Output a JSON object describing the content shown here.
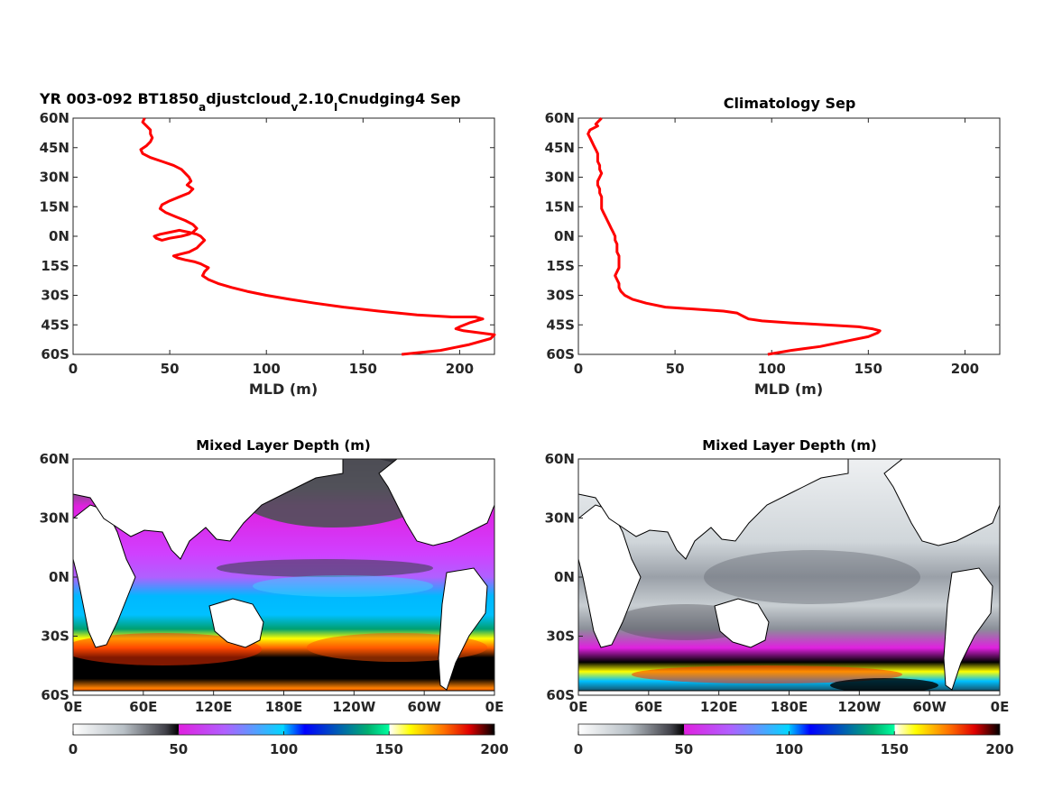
{
  "chart_data": [
    {
      "type": "line",
      "title_parts": {
        "p1": "YR 003-092 BT1850",
        "s1": "a",
        "p2": "djustcloud",
        "s2": "v",
        "p3": "2.10",
        "s3": "I",
        "p4": "Cnudging4 Sep"
      },
      "xlabel": "MLD (m)",
      "xlim": [
        0,
        218
      ],
      "ylim": [
        -60,
        60
      ],
      "xticks": [
        "0",
        "50",
        "100",
        "150",
        "200"
      ],
      "xtick_values": [
        0,
        50,
        100,
        150,
        200
      ],
      "yticks": [
        "60N",
        "45N",
        "30N",
        "15N",
        "0N",
        "15S",
        "30S",
        "45S",
        "60S"
      ],
      "ytick_values": [
        60,
        45,
        30,
        15,
        0,
        -15,
        -30,
        -45,
        -60
      ],
      "line_color": "#ff0000",
      "series": [
        {
          "x": [
            37,
            36,
            38,
            40,
            40,
            41,
            40,
            38,
            35,
            36,
            40,
            46,
            52,
            56,
            58,
            60,
            61,
            59,
            62,
            60,
            55,
            50,
            46,
            45,
            48,
            53,
            58,
            62,
            64,
            62,
            60,
            56,
            50,
            46,
            43,
            42,
            45,
            50,
            55,
            60,
            64,
            66,
            68,
            66,
            64,
            60,
            56,
            52,
            54,
            58,
            63,
            66,
            68,
            70,
            68,
            67,
            70,
            75,
            82,
            90,
            100,
            112,
            125,
            140,
            158,
            178,
            196,
            208,
            212,
            205,
            200,
            198,
            202,
            210,
            218,
            216,
            205,
            190,
            170
          ],
          "y": [
            60,
            58,
            56,
            54,
            52,
            50,
            48,
            46,
            44,
            42,
            40,
            38,
            36,
            34,
            32,
            30,
            28,
            26,
            24,
            22,
            20,
            18,
            16,
            14,
            12,
            10,
            8,
            6,
            4,
            2,
            1,
            0,
            -1,
            -2,
            -1,
            0,
            1,
            2,
            3,
            2,
            1,
            0,
            -2,
            -4,
            -6,
            -8,
            -9,
            -10,
            -11,
            -12,
            -13,
            -14,
            -15,
            -16,
            -18,
            -20,
            -22,
            -24,
            -26,
            -28,
            -30,
            -32,
            -34,
            -36,
            -38,
            -40,
            -41,
            -41,
            -42,
            -44,
            -46,
            -47,
            -48,
            -49,
            -50,
            -52,
            -55,
            -58,
            -60
          ]
        }
      ]
    },
    {
      "type": "line",
      "title": "Climatology Sep",
      "xlabel": "MLD (m)",
      "xlim": [
        0,
        218
      ],
      "ylim": [
        -60,
        60
      ],
      "xticks": [
        "0",
        "50",
        "100",
        "150",
        "200"
      ],
      "xtick_values": [
        0,
        50,
        100,
        150,
        200
      ],
      "yticks": [
        "60N",
        "45N",
        "30N",
        "15N",
        "0N",
        "15S",
        "30S",
        "45S",
        "60S"
      ],
      "ytick_values": [
        60,
        45,
        30,
        15,
        0,
        -15,
        -30,
        -45,
        -60
      ],
      "line_color": "#ff0000",
      "series": [
        {
          "x": [
            12,
            11,
            10,
            9,
            10,
            8,
            6,
            5,
            6,
            7,
            8,
            9,
            10,
            10,
            10,
            11,
            11,
            12,
            11,
            10,
            10,
            11,
            11,
            12,
            12,
            12,
            12,
            13,
            14,
            15,
            16,
            17,
            18,
            19,
            19,
            20,
            20,
            20,
            21,
            21,
            21,
            21,
            20,
            19,
            20,
            21,
            21,
            22,
            24,
            28,
            35,
            45,
            60,
            75,
            82,
            84,
            86,
            88,
            95,
            110,
            128,
            145,
            152,
            156,
            155,
            150,
            140,
            125,
            110,
            98
          ],
          "y": [
            60,
            59,
            58,
            57,
            56,
            55,
            54,
            52,
            50,
            48,
            46,
            44,
            42,
            40,
            38,
            36,
            34,
            32,
            30,
            28,
            26,
            24,
            22,
            20,
            18,
            16,
            14,
            12,
            10,
            8,
            6,
            4,
            2,
            0,
            -2,
            -4,
            -6,
            -8,
            -10,
            -12,
            -14,
            -16,
            -18,
            -20,
            -22,
            -24,
            -26,
            -28,
            -30,
            -32,
            -34,
            -36,
            -37,
            -38,
            -39,
            -40,
            -41,
            -42,
            -43,
            -44,
            -45,
            -46,
            -47,
            -48,
            -49,
            -51,
            -53,
            -56,
            -58,
            -60
          ]
        }
      ]
    },
    {
      "type": "heatmap",
      "title": "Mixed Layer Depth (m)",
      "xticks": [
        "0E",
        "60E",
        "120E",
        "180E",
        "120W",
        "60W",
        "0E"
      ],
      "yticks": [
        "60N",
        "30N",
        "0N",
        "30S",
        "60S"
      ],
      "ytick_values": [
        60,
        30,
        0,
        -30,
        -60
      ],
      "colorbar": {
        "ticks": [
          "0",
          "50",
          "100",
          "150",
          "200"
        ],
        "tick_values": [
          0,
          50,
          100,
          150,
          200
        ],
        "range": [
          0,
          200
        ]
      },
      "zonal_mld": [
        {
          "lat": 60,
          "mld": 35
        },
        {
          "lat": 45,
          "mld": 45
        },
        {
          "lat": 30,
          "mld": 52
        },
        {
          "lat": 15,
          "mld": 58
        },
        {
          "lat": 0,
          "mld": 60
        },
        {
          "lat": -15,
          "mld": 65
        },
        {
          "lat": -30,
          "mld": 110
        },
        {
          "lat": -45,
          "mld": 195
        },
        {
          "lat": -60,
          "mld": 185
        }
      ]
    },
    {
      "type": "heatmap",
      "title": "Mixed Layer Depth (m)",
      "xticks": [
        "0E",
        "60E",
        "120E",
        "180E",
        "120W",
        "60W",
        "0E"
      ],
      "yticks": [
        "60N",
        "30N",
        "0N",
        "30S",
        "60S"
      ],
      "ytick_values": [
        60,
        30,
        0,
        -30,
        -60
      ],
      "colorbar": {
        "ticks": [
          "0",
          "50",
          "100",
          "150",
          "200"
        ],
        "tick_values": [
          0,
          50,
          100,
          150,
          200
        ],
        "range": [
          0,
          200
        ]
      },
      "zonal_mld": [
        {
          "lat": 60,
          "mld": 15
        },
        {
          "lat": 45,
          "mld": 12
        },
        {
          "lat": 30,
          "mld": 15
        },
        {
          "lat": 15,
          "mld": 20
        },
        {
          "lat": 0,
          "mld": 22
        },
        {
          "lat": -15,
          "mld": 25
        },
        {
          "lat": -30,
          "mld": 35
        },
        {
          "lat": -45,
          "mld": 110
        },
        {
          "lat": -60,
          "mld": 90
        }
      ]
    }
  ],
  "colors": {
    "colormap": [
      "#ffffff",
      "#cfd8db",
      "#9aa0a8",
      "#606068",
      "#000000",
      "#ff00ff",
      "#d040ff",
      "#00d0ff",
      "#0000ff",
      "#00a080",
      "#00ffa0",
      "#ffffff",
      "#ffff00",
      "#ff8000",
      "#ff0000",
      "#800000",
      "#000000"
    ],
    "land": "#ffffff",
    "coast": "#000000"
  }
}
